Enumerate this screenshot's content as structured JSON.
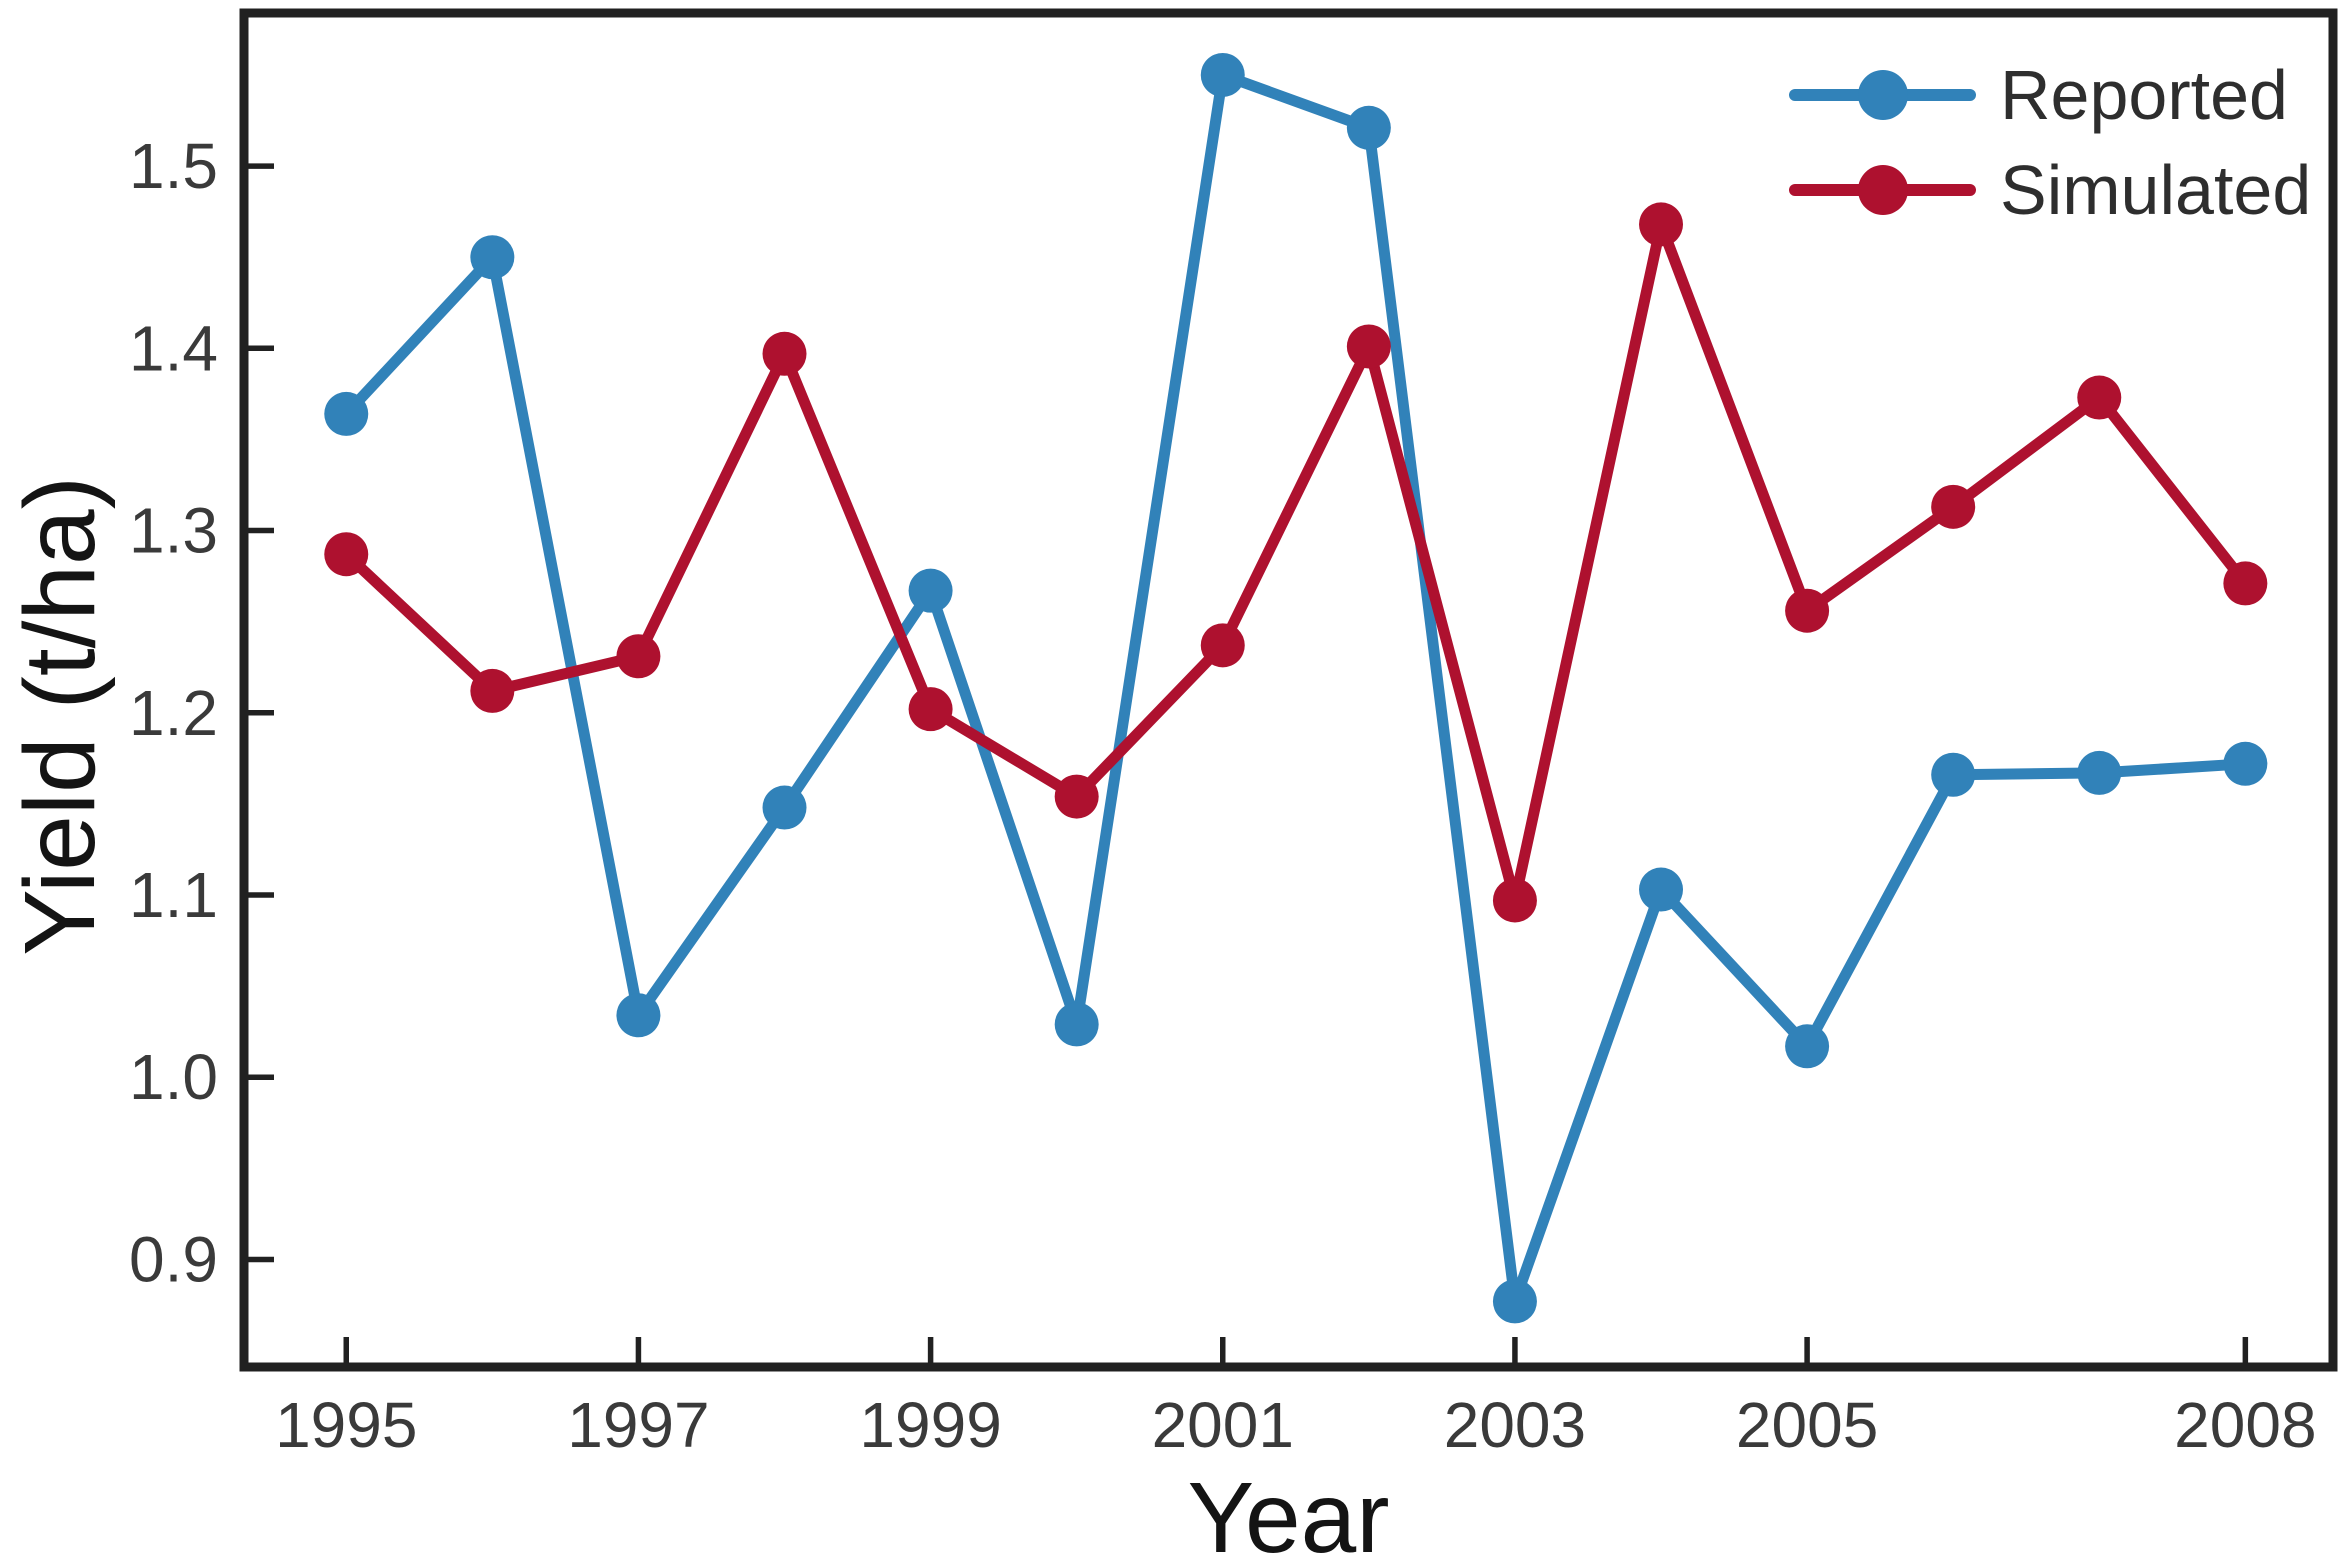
{
  "figure": {
    "background": "#ffffff",
    "axis_color": "#212121",
    "tick_label_color": "#3a3a3a",
    "axis_label_color": "#141414",
    "legend_text_color": "#2e2e2e"
  },
  "chart_data": {
    "type": "line",
    "title": "",
    "xlabel": "Year",
    "ylabel": "Yield (t/ha)",
    "x": [
      1995,
      1996,
      1997,
      1998,
      1999,
      2000,
      2001,
      2002,
      2003,
      2004,
      2005,
      2006,
      2007,
      2008
    ],
    "series": [
      {
        "name": "Reported",
        "color": "#3182b9",
        "marker": "circle",
        "values": [
          1.364,
          1.45,
          1.034,
          1.148,
          1.267,
          1.029,
          1.55,
          1.521,
          0.877,
          1.103,
          1.017,
          1.166,
          1.167,
          1.172
        ]
      },
      {
        "name": "Simulated",
        "color": "#ae112f",
        "marker": "circle",
        "values": [
          1.287,
          1.212,
          1.231,
          1.397,
          1.202,
          1.154,
          1.237,
          1.401,
          1.097,
          1.468,
          1.256,
          1.313,
          1.373,
          1.271
        ]
      }
    ],
    "x_ticks": [
      1995,
      1997,
      1999,
      2001,
      2003,
      2005,
      2008
    ],
    "y_ticks": [
      0.9,
      1.0,
      1.1,
      1.2,
      1.3,
      1.4,
      1.5
    ],
    "xlim": [
      1994.3,
      2008.6
    ],
    "ylim": [
      0.841,
      1.584
    ],
    "grid": false,
    "legend_position": "upper right",
    "legend": [
      "Reported",
      "Simulated"
    ]
  }
}
